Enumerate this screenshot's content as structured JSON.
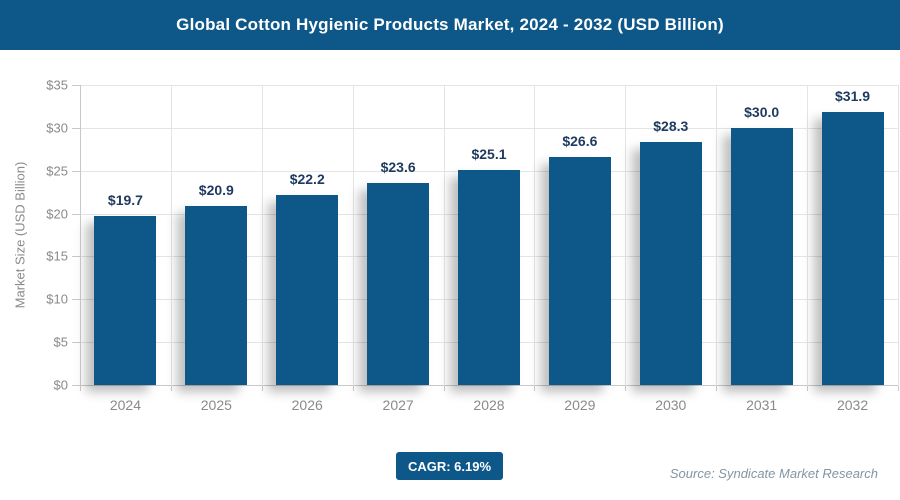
{
  "title_bar": {
    "title": "Global Cotton Hygienic Products Market, 2024 - 2032 (USD Billion)"
  },
  "colors": {
    "primary": "#0E5789",
    "value_label": "#1E3A5F",
    "axis_text": "#8A8A8A",
    "gridline": "#E4E4E4",
    "axis_line": "#C9C9C9",
    "source_text": "#8494A5",
    "background": "#FFFFFF",
    "title_text": "#FFFFFF"
  },
  "chart_data": {
    "type": "bar",
    "title": "Global Cotton Hygienic Products Market, 2024 - 2032 (USD Billion)",
    "categories": [
      "2024",
      "2025",
      "2026",
      "2027",
      "2028",
      "2029",
      "2030",
      "2031",
      "2032"
    ],
    "values": [
      19.7,
      20.9,
      22.2,
      23.6,
      25.1,
      26.6,
      28.3,
      30.0,
      31.9
    ],
    "value_labels": [
      "$19.7",
      "$20.9",
      "$22.2",
      "$23.6",
      "$25.1",
      "$26.6",
      "$28.3",
      "$30.0",
      "$31.9"
    ],
    "xlabel": "",
    "ylabel": "Market Size (USD Billion)",
    "ylim": [
      0,
      35
    ],
    "ytick_step": 5,
    "ytick_labels": [
      "$0",
      "$5",
      "$10",
      "$15",
      "$20",
      "$25",
      "$30",
      "$35"
    ],
    "grid": true,
    "legend": false,
    "bar_color": "#0E5789"
  },
  "footer": {
    "cagr_label": "CAGR: 6.19%",
    "source": "Source: Syndicate Market Research"
  }
}
